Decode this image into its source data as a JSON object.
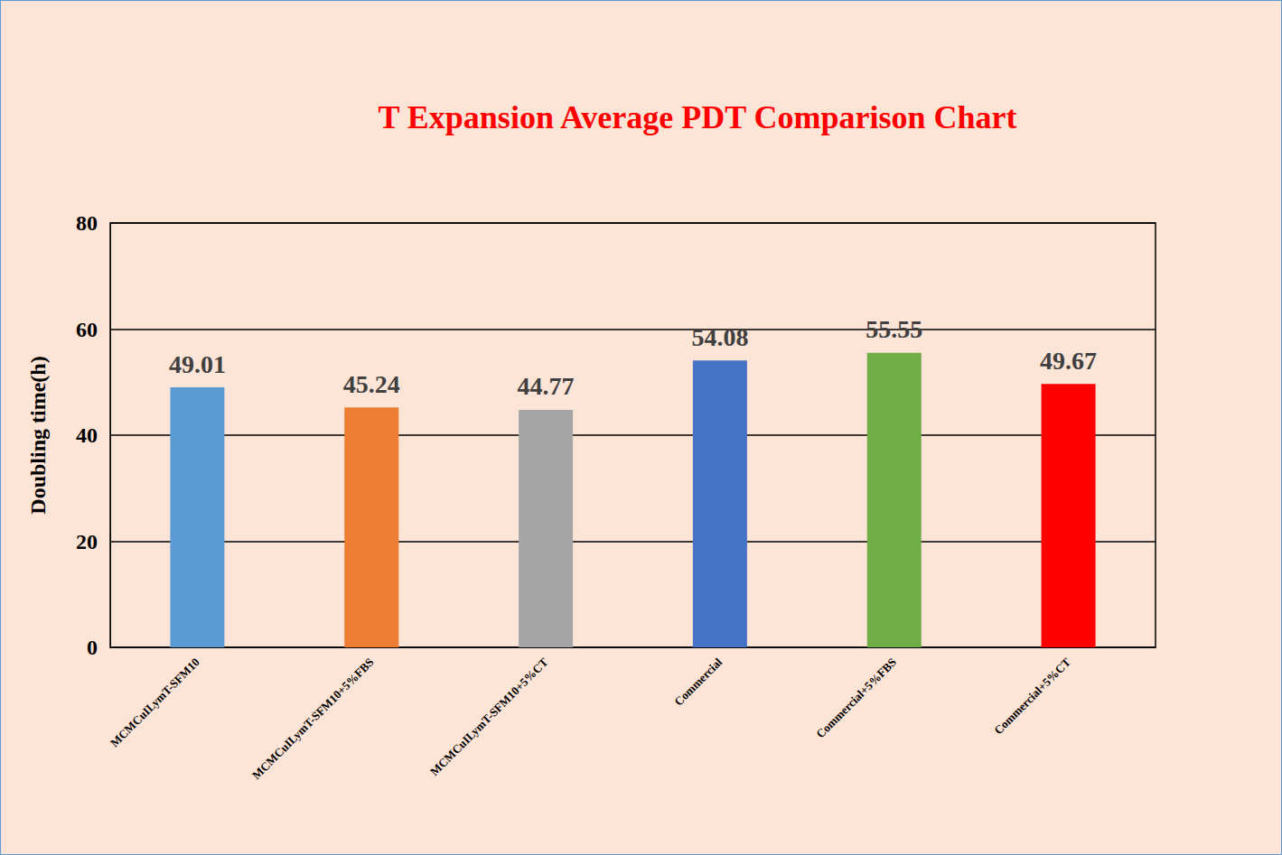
{
  "chart_data": {
    "type": "bar",
    "title": "T Expansion Average PDT Comparison Chart",
    "y_label": "Doubling time(h)",
    "categories": [
      "MCMCuILymT-SFM10",
      "MCMCuILymT-SFM10+5%FBS",
      "MCMCuILymT-SFM10+5%CT",
      "Commercial",
      "Commercial+5%FBS",
      "Commercial+5%CT"
    ],
    "values": [
      49.01,
      45.24,
      44.77,
      54.08,
      55.55,
      49.67
    ],
    "colors": [
      "#5b9bd5",
      "#ed7d31",
      "#a5a5a5",
      "#4472c4",
      "#70ad47",
      "#ff0000"
    ],
    "ylim": [
      0,
      80
    ],
    "yticks": [
      0,
      20,
      40,
      60,
      80
    ],
    "grid": true,
    "data_labels": true
  }
}
